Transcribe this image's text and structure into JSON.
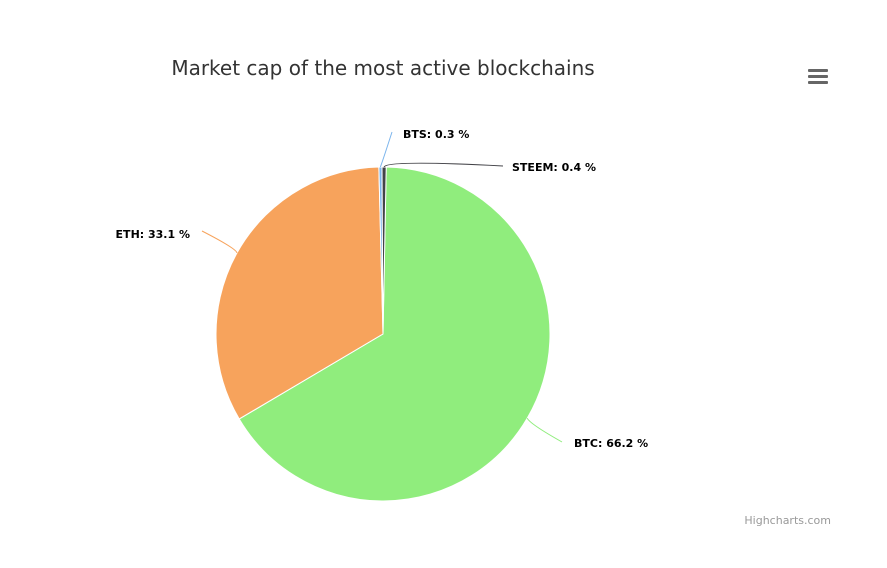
{
  "chart_data": {
    "type": "pie",
    "title": "Market cap of the most active blockchains",
    "series": [
      {
        "name": "BTC",
        "value": 66.2,
        "color": "#90ed7d",
        "label": "BTC: 66.2 %"
      },
      {
        "name": "ETH",
        "value": 33.1,
        "color": "#f7a35c",
        "label": "ETH: 33.1 %"
      },
      {
        "name": "BTS",
        "value": 0.3,
        "color": "#7cb5ec",
        "label": "BTS: 0.3 %"
      },
      {
        "name": "STEEM",
        "value": 0.4,
        "color": "#434348",
        "label": "STEEM: 0.4 %"
      }
    ],
    "legend": false
  },
  "credits": "Highcharts.com",
  "menu_icon": "hamburger-menu-icon"
}
